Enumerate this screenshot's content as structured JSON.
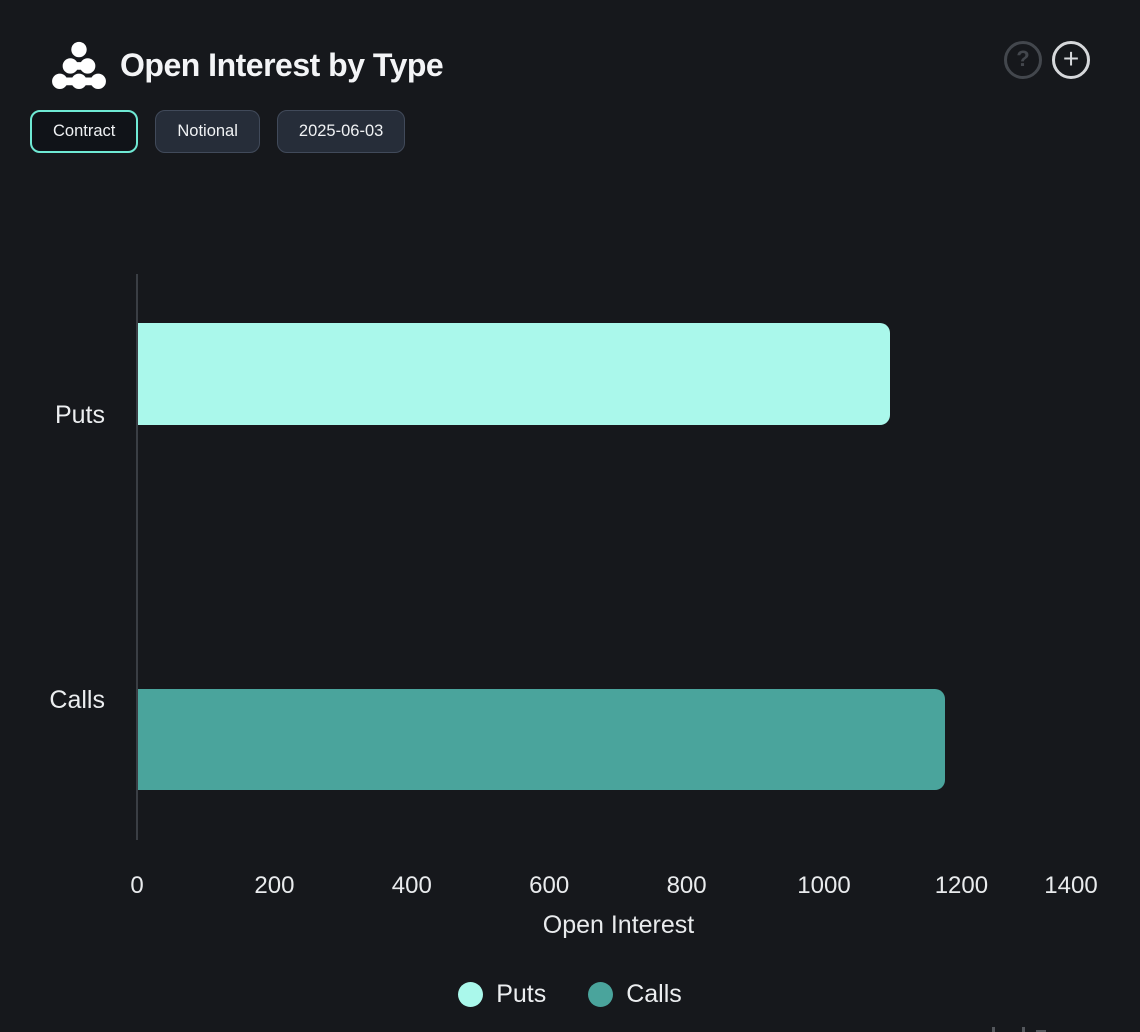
{
  "header": {
    "title": "Open Interest by Type",
    "icons": {
      "help_glyph": "?",
      "add_glyph": "+"
    }
  },
  "controls": {
    "buttons": [
      {
        "label": "Contract",
        "active": true
      },
      {
        "label": "Notional",
        "active": false
      },
      {
        "label": "2025-06-03",
        "active": false
      }
    ]
  },
  "chart_data": {
    "type": "bar",
    "orientation": "horizontal",
    "categories": [
      "Puts",
      "Calls"
    ],
    "series": [
      {
        "name": "Puts",
        "value": 1095,
        "color": "#aaf8eb"
      },
      {
        "name": "Calls",
        "value": 1175,
        "color": "#4aa49c"
      }
    ],
    "values": [
      1095,
      1175
    ],
    "xlabel": "Open Interest",
    "xticks": [
      0,
      200,
      400,
      600,
      800,
      1000,
      1200,
      1400
    ],
    "xlim": [
      0,
      1400
    ],
    "grid": false,
    "legend": [
      {
        "label": "Puts",
        "color": "#aaf8eb"
      },
      {
        "label": "Calls",
        "color": "#4aa49c"
      }
    ],
    "legend_position": "bottom-center"
  },
  "colors": {
    "background": "#16181c",
    "accent_mint": "#aaf8eb",
    "accent_teal": "#4aa49c",
    "active_border": "#6fe9d4",
    "axis_line": "#3a3e44",
    "text": "#eef0f2"
  }
}
